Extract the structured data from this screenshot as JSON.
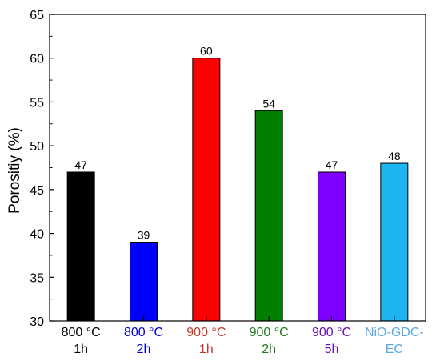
{
  "chart_data": {
    "type": "bar",
    "categories": [
      [
        "800 °C",
        "1h"
      ],
      [
        "800 °C",
        "2h"
      ],
      [
        "900 °C",
        "1h"
      ],
      [
        "900 °C",
        "2h"
      ],
      [
        "900 °C",
        "5h"
      ],
      [
        "NiO-GDC-",
        "EC"
      ]
    ],
    "values": [
      47,
      39,
      60,
      54,
      47,
      48
    ],
    "data_labels": [
      "47",
      "39",
      "60",
      "54",
      "47",
      "48"
    ],
    "colors": [
      "#000000",
      "#0000ff",
      "#ff0000",
      "#007f00",
      "#7f00ff",
      "#1eb4f0"
    ],
    "label_colors": [
      "#000000",
      "#0000cc",
      "#c0392b",
      "#1a7a1a",
      "#6a0dad",
      "#5aa9e6"
    ],
    "xlabel": "",
    "ylabel": "Porositiy (%)",
    "ylim": [
      30,
      65
    ],
    "yticks": [
      30,
      35,
      40,
      45,
      50,
      55,
      60,
      65
    ],
    "grid": false,
    "legend": "none"
  }
}
